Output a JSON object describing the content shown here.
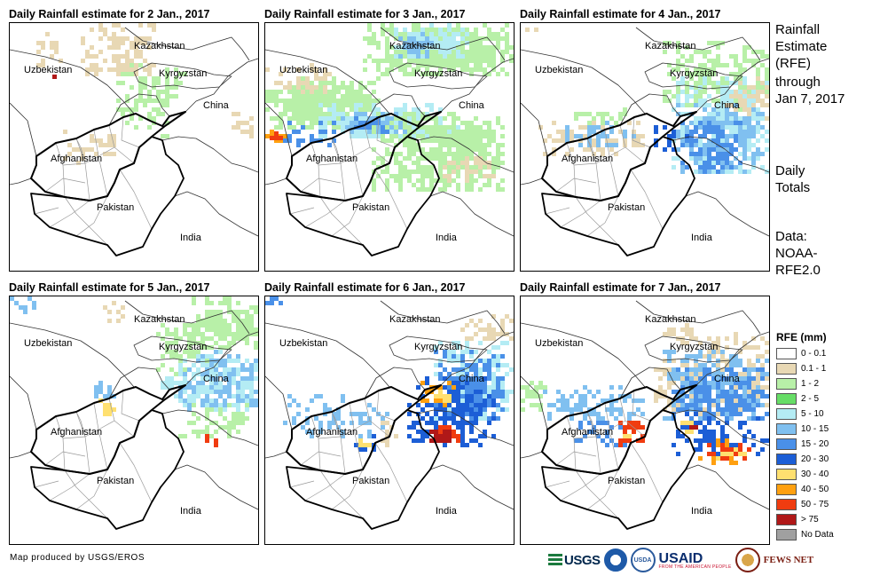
{
  "panels": [
    {
      "title": "Daily Rainfall estimate for 2 Jan., 2017",
      "day": "2 Jan."
    },
    {
      "title": "Daily Rainfall estimate for 3 Jan., 2017",
      "day": "3 Jan."
    },
    {
      "title": "Daily Rainfall estimate for 4 Jan., 2017",
      "day": "4 Jan."
    },
    {
      "title": "Daily Rainfall estimate for 5 Jan., 2017",
      "day": "5 Jan."
    },
    {
      "title": "Daily Rainfall estimate for 6 Jan., 2017",
      "day": "6 Jan."
    },
    {
      "title": "Daily Rainfall estimate for 7 Jan., 2017",
      "day": "7 Jan."
    }
  ],
  "map_labels": {
    "kazakhstan": "Kazakhstan",
    "kyrgyzstan": "Kyrgyzstan",
    "uzbekistan": "Uzbekistan",
    "china": "China",
    "afghanistan": "Afghanistan",
    "pakistan": "Pakistan",
    "india": "India"
  },
  "sidebar": {
    "title_lines": [
      "Rainfall",
      "Estimate",
      "(RFE)"
    ],
    "through_lines": [
      "through",
      "Jan 7, 2017"
    ],
    "totals_lines": [
      "Daily",
      "Totals"
    ],
    "data_lines": [
      "Data:",
      "NOAA-",
      "RFE2.0"
    ]
  },
  "legend": {
    "title": "RFE (mm)",
    "items": [
      {
        "label": "0 - 0.1",
        "color": "#ffffff"
      },
      {
        "label": "0.1 - 1",
        "color": "#e8d8b4"
      },
      {
        "label": "1 - 2",
        "color": "#b8f0a8"
      },
      {
        "label": "2 - 5",
        "color": "#66dd66"
      },
      {
        "label": "5 - 10",
        "color": "#b4ecf4"
      },
      {
        "label": "10 - 15",
        "color": "#80c0f0"
      },
      {
        "label": "15 - 20",
        "color": "#4a90e8"
      },
      {
        "label": "20 - 30",
        "color": "#1c5ed6"
      },
      {
        "label": "30 - 40",
        "color": "#ffe070"
      },
      {
        "label": "40 - 50",
        "color": "#ffa010"
      },
      {
        "label": "50 - 75",
        "color": "#f03c10"
      },
      {
        "label": "> 75",
        "color": "#b01818"
      },
      {
        "label": "No Data",
        "color": "#a0a0a0"
      }
    ]
  },
  "footer": {
    "credit": "Map produced by USGS/EROS",
    "logos": {
      "usgs": "USGS",
      "noaa": "NOAA",
      "usda": "USDA",
      "usaid": "USAID",
      "usaid_tag": "FROM THE AMERICAN PEOPLE",
      "fews": "FEWS NET"
    }
  }
}
